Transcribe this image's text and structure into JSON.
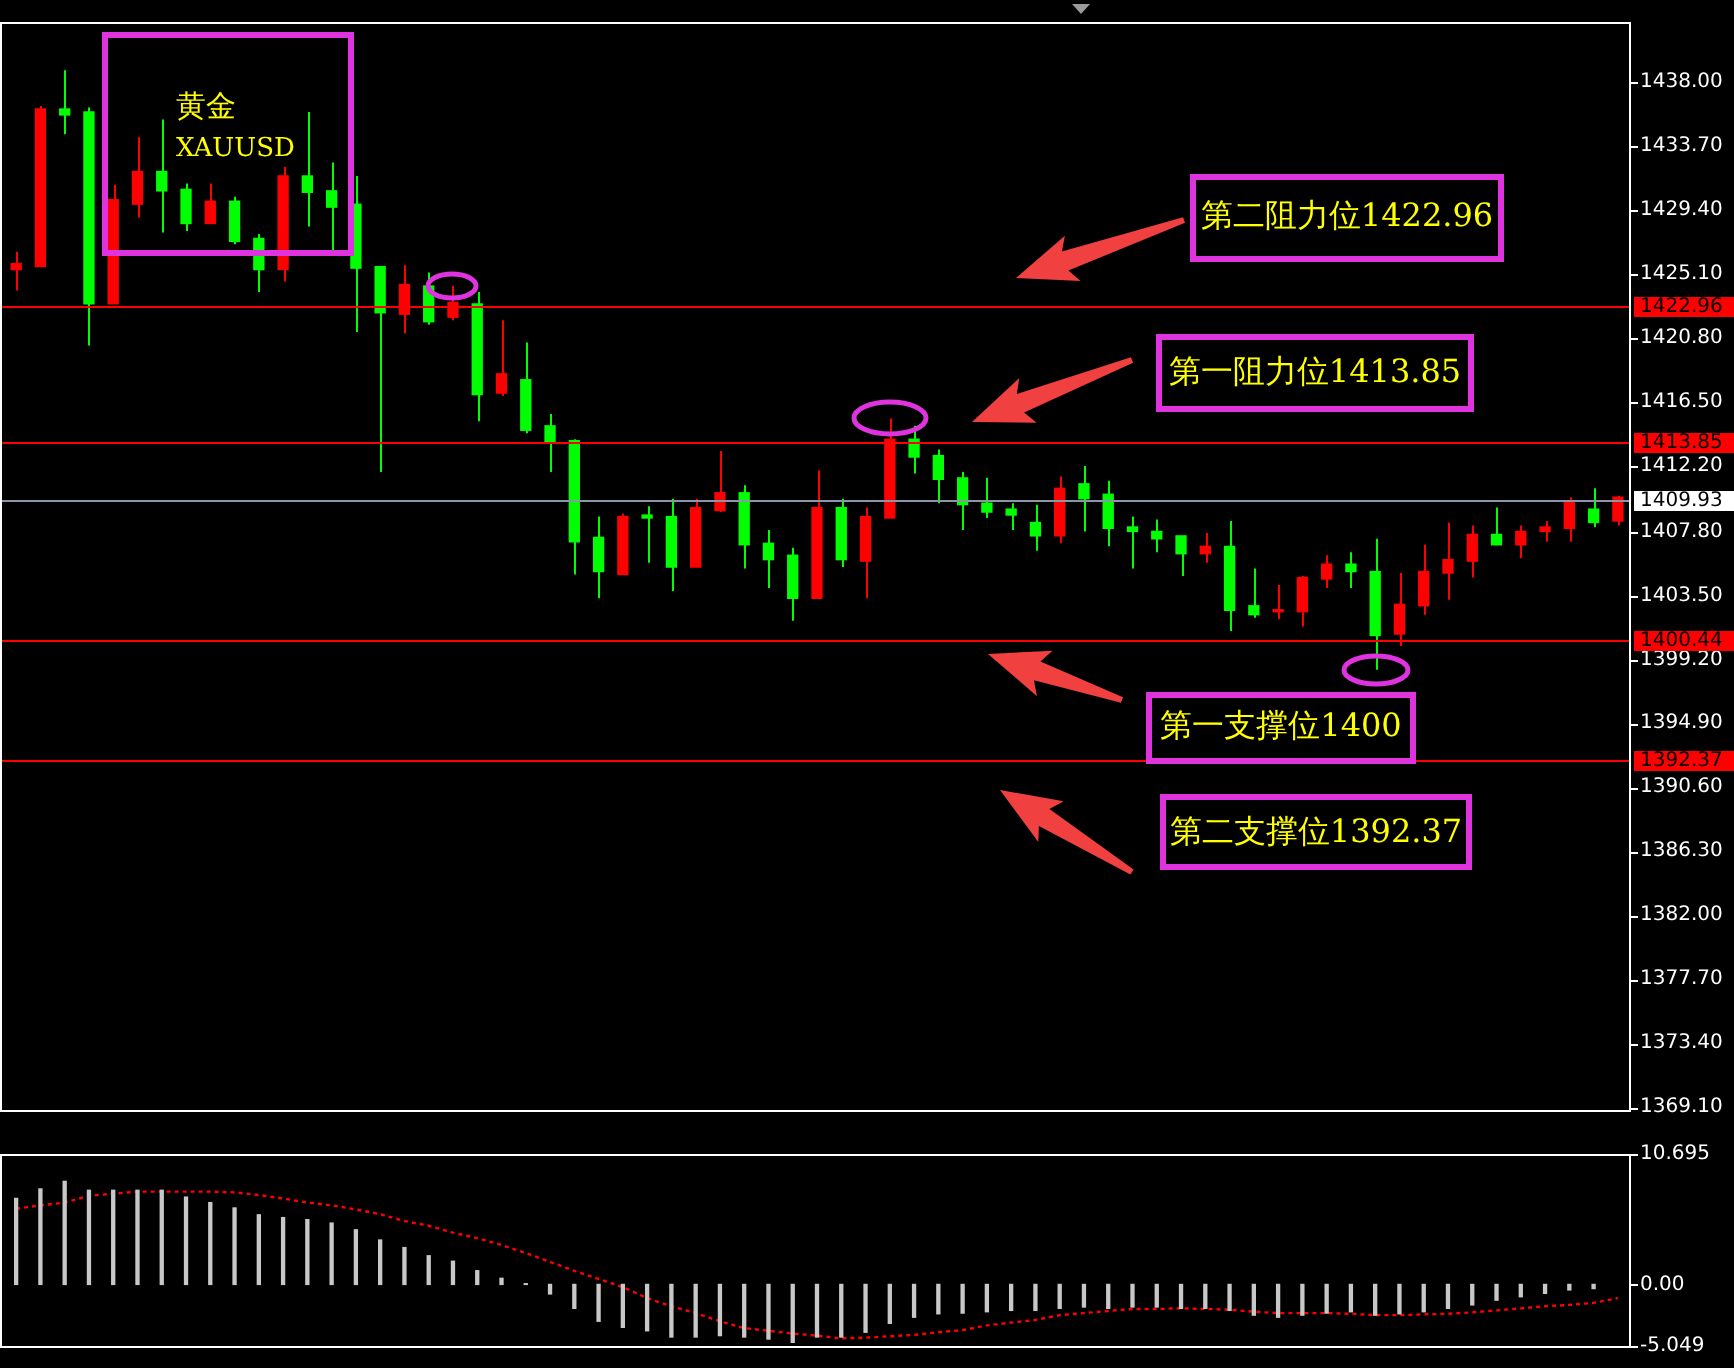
{
  "chart_data": [
    {
      "type": "candlestick",
      "title": "黄金",
      "subtitle": "XAUUSD",
      "categories": [
        null,
        null,
        null,
        null,
        null,
        null,
        null,
        null,
        null,
        null,
        null,
        null,
        null,
        null,
        null,
        null,
        null,
        null,
        null,
        null,
        null,
        null,
        null,
        null,
        null,
        null,
        null,
        null,
        null,
        null,
        null,
        null,
        null,
        null,
        null,
        null,
        null,
        null,
        null,
        null,
        null,
        null,
        null,
        null,
        null,
        null,
        null,
        null,
        null,
        null,
        null,
        null,
        null,
        null,
        null,
        null,
        null,
        null,
        null,
        null,
        null,
        null,
        null,
        null,
        null,
        null,
        null
      ],
      "ohlc": [
        [
          1425.4,
          1426.6,
          1424.0,
          1425.8
        ],
        [
          1425.6,
          1436.4,
          1425.6,
          1436.2
        ],
        [
          1436.2,
          1438.8,
          1434.5,
          1435.8
        ],
        [
          1436.0,
          1436.3,
          1420.3,
          1423.1
        ],
        [
          1423.1,
          1431.1,
          1423.1,
          1430.1
        ],
        [
          1429.8,
          1434.3,
          1428.9,
          1432.0
        ],
        [
          1432.0,
          1435.5,
          1427.9,
          1430.7
        ],
        [
          1430.8,
          1431.2,
          1428.0,
          1428.5
        ],
        [
          1428.5,
          1431.2,
          1428.5,
          1430.0
        ],
        [
          1430.0,
          1430.3,
          1427.1,
          1427.3
        ],
        [
          1427.5,
          1427.8,
          1423.9,
          1425.4
        ],
        [
          1425.4,
          1432.3,
          1424.6,
          1431.7
        ],
        [
          1431.7,
          1436.0,
          1428.3,
          1430.6
        ],
        [
          1430.7,
          1432.6,
          1426.4,
          1429.6
        ],
        [
          1429.8,
          1431.7,
          1421.2,
          1425.5
        ],
        [
          1425.6,
          1425.6,
          1411.8,
          1422.5
        ],
        [
          1422.4,
          1425.7,
          1421.1,
          1424.4
        ],
        [
          1424.3,
          1425.2,
          1421.7,
          1421.9
        ],
        [
          1422.2,
          1424.3,
          1422.0,
          1423.2
        ],
        [
          1423.1,
          1423.9,
          1415.2,
          1417.0
        ],
        [
          1417.1,
          1422.0,
          1416.9,
          1418.4
        ],
        [
          1418.0,
          1420.5,
          1414.4,
          1414.6
        ],
        [
          1414.9,
          1415.7,
          1411.8,
          1413.8
        ],
        [
          1413.9,
          1414.0,
          1404.9,
          1407.1
        ],
        [
          1407.4,
          1408.8,
          1403.3,
          1405.1
        ],
        [
          1404.9,
          1409.0,
          1404.9,
          1408.8
        ],
        [
          1408.9,
          1409.5,
          1405.7,
          1408.7
        ],
        [
          1408.8,
          1410.0,
          1403.8,
          1405.4
        ],
        [
          1405.4,
          1410.0,
          1405.4,
          1409.4
        ],
        [
          1409.2,
          1413.2,
          1409.1,
          1410.4
        ],
        [
          1410.4,
          1410.9,
          1405.3,
          1406.9
        ],
        [
          1407.0,
          1407.9,
          1404.0,
          1405.9
        ],
        [
          1406.2,
          1406.7,
          1401.8,
          1403.3
        ],
        [
          1403.3,
          1411.9,
          1403.3,
          1409.4
        ],
        [
          1409.4,
          1410.0,
          1405.4,
          1405.9
        ],
        [
          1405.8,
          1409.4,
          1403.3,
          1408.8
        ],
        [
          1408.7,
          1415.4,
          1408.7,
          1414.0
        ],
        [
          1414.0,
          1414.9,
          1411.7,
          1412.8
        ],
        [
          1412.9,
          1413.3,
          1409.7,
          1411.3
        ],
        [
          1411.4,
          1411.8,
          1407.9,
          1409.6
        ],
        [
          1409.7,
          1411.4,
          1408.7,
          1409.1
        ],
        [
          1409.3,
          1409.7,
          1407.9,
          1408.9
        ],
        [
          1408.4,
          1409.6,
          1406.5,
          1407.5
        ],
        [
          1407.5,
          1411.5,
          1407.0,
          1410.7
        ],
        [
          1411.0,
          1412.2,
          1407.8,
          1410.0
        ],
        [
          1410.3,
          1411.2,
          1406.8,
          1408.0
        ],
        [
          1408.1,
          1408.8,
          1405.3,
          1407.8
        ],
        [
          1407.8,
          1408.6,
          1406.4,
          1407.3
        ],
        [
          1407.5,
          1407.5,
          1404.8,
          1406.3
        ],
        [
          1406.3,
          1407.7,
          1405.7,
          1406.8
        ],
        [
          1406.8,
          1408.5,
          1401.1,
          1402.5
        ],
        [
          1402.8,
          1405.3,
          1402.0,
          1402.2
        ],
        [
          1402.4,
          1404.2,
          1401.9,
          1402.5
        ],
        [
          1402.4,
          1404.8,
          1401.4,
          1404.7
        ],
        [
          1404.6,
          1406.2,
          1404.0,
          1405.6
        ],
        [
          1405.6,
          1406.4,
          1404.0,
          1405.1
        ],
        [
          1405.1,
          1407.3,
          1398.5,
          1400.8
        ],
        [
          1400.9,
          1405.0,
          1400.1,
          1402.9
        ],
        [
          1402.8,
          1406.9,
          1402.2,
          1405.1
        ],
        [
          1405.0,
          1408.4,
          1403.2,
          1405.9
        ],
        [
          1405.8,
          1408.2,
          1404.7,
          1407.6
        ],
        [
          1407.6,
          1409.4,
          1406.9,
          1406.9
        ],
        [
          1406.9,
          1408.2,
          1406.0,
          1407.8
        ],
        [
          1407.8,
          1408.5,
          1407.1,
          1408.1
        ],
        [
          1408.0,
          1410.1,
          1407.1,
          1409.8
        ],
        [
          1409.3,
          1410.7,
          1408.1,
          1408.4
        ],
        [
          1408.5,
          1410.2,
          1408.2,
          1410.1
        ]
      ],
      "colors": [
        "#ff0000",
        "#ff0000",
        "#00ff00",
        "#00ff00",
        "#ff0000",
        "#ff0000",
        "#00ff00",
        "#00ff00",
        "#ff0000",
        "#00ff00",
        "#00ff00",
        "#ff0000",
        "#00ff00",
        "#00ff00",
        "#00ff00",
        "#00ff00",
        "#ff0000",
        "#00ff00",
        "#ff0000",
        "#00ff00",
        "#ff0000",
        "#00ff00",
        "#00ff00",
        "#00ff00",
        "#00ff00",
        "#ff0000",
        "#00ff00",
        "#00ff00",
        "#ff0000",
        "#ff0000",
        "#00ff00",
        "#00ff00",
        "#00ff00",
        "#ff0000",
        "#00ff00",
        "#ff0000",
        "#ff0000",
        "#00ff00",
        "#00ff00",
        "#00ff00",
        "#00ff00",
        "#00ff00",
        "#00ff00",
        "#ff0000",
        "#00ff00",
        "#00ff00",
        "#00ff00",
        "#00ff00",
        "#00ff00",
        "#ff0000",
        "#00ff00",
        "#00ff00",
        "#ff0000",
        "#ff0000",
        "#ff0000",
        "#00ff00",
        "#00ff00",
        "#ff0000",
        "#ff0000",
        "#ff0000",
        "#ff0000",
        "#00ff00",
        "#ff0000",
        "#ff0000",
        "#ff0000",
        "#00ff00",
        "#ff0000"
      ],
      "ylim": [
        1368.9,
        1442.05
      ],
      "yticks": [
        {
          "value": 1438,
          "label": "1438.00"
        },
        {
          "value": 1433.7,
          "label": "1433.70"
        },
        {
          "value": 1429.4,
          "label": "1429.40"
        },
        {
          "value": 1425.1,
          "label": "1425.10"
        },
        {
          "value": 1420.8,
          "label": "1420.80"
        },
        {
          "value": 1416.5,
          "label": "1416.50"
        },
        {
          "value": 1412.2,
          "label": "1412.20"
        },
        {
          "value": 1407.8,
          "label": "1407.80"
        },
        {
          "value": 1403.5,
          "label": "1403.50"
        },
        {
          "value": 1399.2,
          "label": "1399.20"
        },
        {
          "value": 1394.9,
          "label": "1394.90"
        },
        {
          "value": 1390.6,
          "label": "1390.60"
        },
        {
          "value": 1386.3,
          "label": "1386.30"
        },
        {
          "value": 1382,
          "label": "1382.00"
        },
        {
          "value": 1377.7,
          "label": "1377.70"
        },
        {
          "value": 1373.4,
          "label": "1373.40"
        },
        {
          "value": 1369.1,
          "label": "1369.10"
        }
      ],
      "ref_lines": [
        {
          "axis": "y",
          "value": 1422.96,
          "label": "1422.96",
          "color": "#ff0000"
        },
        {
          "axis": "y",
          "value": 1413.85,
          "label": "1413.85",
          "color": "#ff0000"
        },
        {
          "axis": "y",
          "value": 1409.93,
          "label": "1409.93",
          "color": "#8a96a8"
        },
        {
          "axis": "y",
          "value": 1400.44,
          "label": "1400.44",
          "color": "#ff0000"
        },
        {
          "axis": "y",
          "value": 1392.37,
          "label": "1392.37",
          "color": "#ff0000"
        }
      ],
      "annotations": [
        {
          "text": "第二阻力位1422.96",
          "y": 1422.96
        },
        {
          "text": "第一阻力位1413.85",
          "y": 1413.85
        },
        {
          "text": "第一支撑位1400",
          "y": 1400
        },
        {
          "text": "第二支撑位1392.37",
          "y": 1392.37
        }
      ],
      "tick_labels": "y"
    },
    {
      "type": "bar",
      "categories": [
        null,
        null,
        null,
        null,
        null,
        null,
        null,
        null,
        null,
        null,
        null,
        null,
        null,
        null,
        null,
        null,
        null,
        null,
        null,
        null,
        null,
        null,
        null,
        null,
        null,
        null,
        null,
        null,
        null,
        null,
        null,
        null,
        null,
        null,
        null,
        null,
        null,
        null,
        null,
        null,
        null,
        null,
        null,
        null,
        null,
        null,
        null,
        null,
        null,
        null,
        null,
        null,
        null,
        null,
        null,
        null,
        null,
        null,
        null,
        null,
        null,
        null,
        null,
        null,
        null,
        null,
        null
      ],
      "series": [
        {
          "type": "bar",
          "color": "#c8c8c8",
          "values": [
            7.05,
            7.83,
            8.45,
            7.72,
            7.72,
            7.72,
            7.72,
            7.16,
            6.71,
            6.27,
            5.71,
            5.48,
            5.31,
            5.03,
            4.48,
            3.64,
            3.02,
            2.35,
            1.9,
            1.12,
            0.5,
            0.06,
            -0.78,
            -1.96,
            -3.02,
            -3.52,
            -3.8,
            -4.31,
            -4.31,
            -4.2,
            -4.31,
            -4.48,
            -4.75,
            -4.31,
            -4.31,
            -3.92,
            -3.19,
            -2.69,
            -2.41,
            -2.35,
            -2.24,
            -2.13,
            -2.13,
            -1.96,
            -1.85,
            -1.96,
            -1.85,
            -1.85,
            -1.96,
            -1.96,
            -2.13,
            -2.52,
            -2.69,
            -2.52,
            -2.35,
            -2.24,
            -2.52,
            -2.41,
            -2.24,
            -1.96,
            -1.68,
            -1.29,
            -1.01,
            -0.73,
            -0.45,
            -0.34,
            null
          ]
        },
        {
          "type": "line",
          "color": "#ff0000",
          "line_style": "dotted",
          "values": [
            6.21,
            6.49,
            6.71,
            7.27,
            7.44,
            7.61,
            7.61,
            7.61,
            7.61,
            7.55,
            7.33,
            7.05,
            6.71,
            6.49,
            6.15,
            5.76,
            5.2,
            4.81,
            4.25,
            3.8,
            3.24,
            2.57,
            1.85,
            1.12,
            0.45,
            -0.22,
            -1.12,
            -1.79,
            -2.35,
            -3.02,
            -3.58,
            -3.8,
            -4.03,
            -4.2,
            -4.42,
            -4.36,
            -4.25,
            -4.14,
            -3.92,
            -3.75,
            -3.36,
            -3.13,
            -2.91,
            -2.52,
            -2.35,
            -2.18,
            -2.01,
            -2.01,
            -1.96,
            -2.01,
            -2.07,
            -2.24,
            -2.35,
            -2.35,
            -2.35,
            -2.41,
            -2.52,
            -2.52,
            -2.46,
            -2.41,
            -2.29,
            -2.13,
            -1.96,
            -1.79,
            -1.68,
            -1.51,
            -1.12
          ]
        }
      ],
      "ylim": [
        -5.049,
        10.695
      ],
      "yticks": [
        {
          "value": 10.695,
          "label": "10.695"
        },
        {
          "value": 0,
          "label": "0.00"
        },
        {
          "value": -5.049,
          "label": "-5.049"
        }
      ],
      "tick_labels": "y"
    }
  ]
}
